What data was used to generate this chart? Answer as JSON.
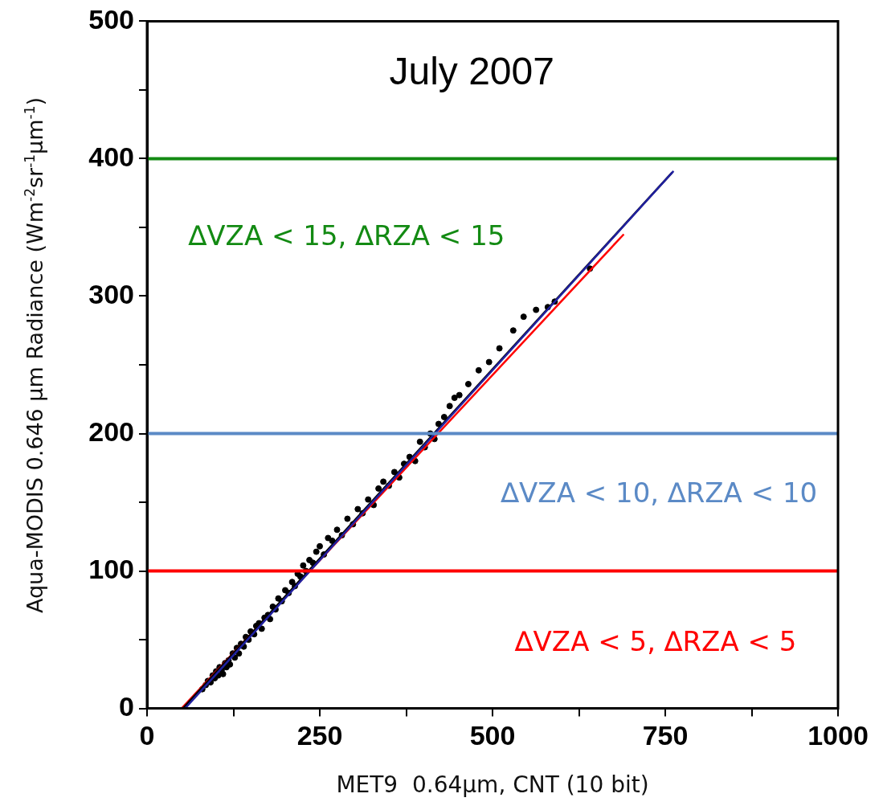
{
  "chart_data": {
    "type": "scatter",
    "title": "July 2007",
    "xlabel": "MET9  0.64µm, CNT (10 bit)",
    "ylabel": "Aqua-MODIS 0.646 µm Radiance (Wm$^{-2}$sr$^{-1}$µm$^{-1}$)",
    "xlim": [
      0,
      1000
    ],
    "xticks": [
      0,
      {
        "value": 125,
        "label": null
      },
      250,
      {
        "value": 375,
        "label": null
      },
      500,
      {
        "value": 625,
        "label": null
      },
      750,
      {
        "value": 875,
        "label": null
      },
      1000
    ],
    "ylim": [
      0,
      500
    ],
    "yticks": [
      0,
      {
        "value": 50,
        "label": null
      },
      100,
      {
        "value": 150,
        "label": null
      },
      200,
      {
        "value": 250,
        "label": null
      },
      300,
      {
        "value": 350,
        "label": null
      },
      400,
      {
        "value": 450,
        "label": null
      },
      500
    ],
    "grid": false,
    "legend": false,
    "marker": "circle",
    "series": [
      {
        "color": "#000000",
        "x": [
          80,
          85,
          88,
          92,
          95,
          98,
          100,
          103,
          105,
          108,
          110,
          113,
          115,
          118,
          120,
          124,
          127,
          130,
          133,
          136,
          140,
          143,
          147,
          150,
          155,
          158,
          162,
          166,
          170,
          175,
          178,
          182,
          186,
          190,
          195,
          200,
          205,
          210,
          214,
          218,
          222,
          226,
          230,
          235,
          240,
          245,
          250,
          256,
          262,
          268,
          275,
          282,
          290,
          298,
          305,
          312,
          320,
          328,
          335,
          342,
          350,
          358,
          365,
          372,
          380,
          388,
          395,
          402,
          410,
          416,
          422,
          430,
          438,
          445,
          452,
          465,
          480,
          495,
          510,
          530,
          545,
          563,
          580,
          590,
          641
        ],
        "values": [
          14,
          17,
          20,
          19,
          24,
          22,
          27,
          24,
          30,
          28,
          25,
          33,
          30,
          35,
          32,
          40,
          37,
          44,
          40,
          47,
          45,
          52,
          50,
          56,
          54,
          60,
          62,
          58,
          66,
          68,
          65,
          74,
          72,
          80,
          78,
          86,
          84,
          92,
          89,
          98,
          96,
          104,
          100,
          108,
          106,
          114,
          118,
          112,
          124,
          122,
          130,
          126,
          138,
          134,
          145,
          142,
          152,
          148,
          160,
          165,
          162,
          172,
          168,
          178,
          183,
          180,
          194,
          190,
          200,
          196,
          207,
          212,
          220,
          226,
          228,
          236,
          246,
          252,
          262,
          275,
          285,
          290,
          292,
          296,
          320
        ]
      },
      {
        "type": "line",
        "color": "#2020a0",
        "marker": "none",
        "x": [
          55,
          762
        ],
        "values": [
          0,
          391
        ]
      },
      {
        "type": "line",
        "color": "#000000",
        "marker": "none",
        "x": [
          52,
          760
        ],
        "values": [
          0,
          390
        ]
      },
      {
        "type": "line",
        "color": "#ff0000",
        "marker": "none",
        "x": [
          50,
          690
        ],
        "values": [
          0,
          345
        ]
      }
    ],
    "ref_lines": [
      {
        "axis": "y",
        "value": 400,
        "label": "∆VZA < 15, ∆RZA < 15",
        "color": "#138a13"
      },
      {
        "axis": "y",
        "value": 200,
        "label": "∆VZA < 10, ∆RZA < 10",
        "color": "#5b8ac6"
      },
      {
        "axis": "y",
        "value": 100,
        "label": "∆VZA < 5, ∆RZA < 5",
        "color": "#ff0000"
      }
    ]
  }
}
